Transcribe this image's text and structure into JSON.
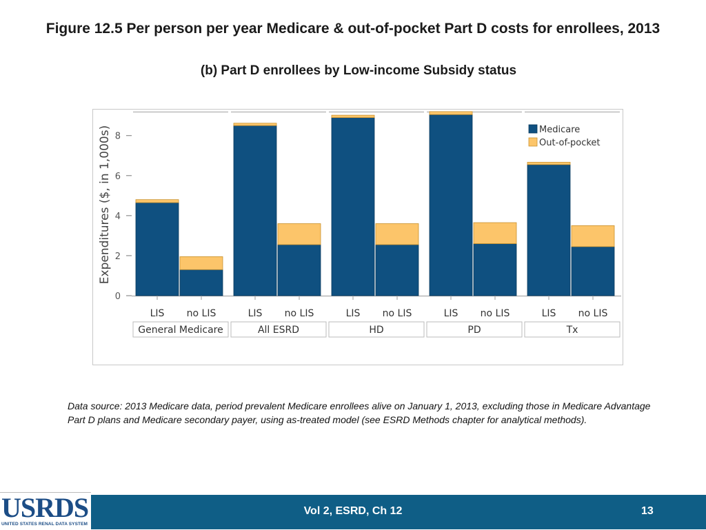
{
  "header": {
    "title": "Figure 12.5 Per person per year Medicare & out-of-pocket Part D costs for enrollees, 2013",
    "subtitle": "(b) Part D enrollees by Low-income Subsidy status"
  },
  "chart_data": {
    "type": "bar",
    "stacked": true,
    "ylabel": "Expenditures ($, in 1,000s)",
    "xlabel": "",
    "ylim": [
      0,
      9.3
    ],
    "yticks": [
      0,
      2,
      4,
      6,
      8
    ],
    "legend": {
      "placement": "top-right",
      "entries": [
        "Medicare",
        "Out-of-pocket"
      ]
    },
    "groups": [
      "General Medicare",
      "All ESRD",
      "HD",
      "PD",
      "Tx"
    ],
    "subcategories": [
      "LIS",
      "no LIS"
    ],
    "series": [
      {
        "name": "Medicare",
        "color": "#0f5080",
        "values": [
          [
            4.65,
            1.3
          ],
          [
            8.5,
            2.55
          ],
          [
            8.9,
            2.55
          ],
          [
            9.05,
            2.6
          ],
          [
            6.55,
            2.45
          ]
        ]
      },
      {
        "name": "Out-of-pocket",
        "color": "#fcc56a",
        "values": [
          [
            0.15,
            0.65
          ],
          [
            0.12,
            1.05
          ],
          [
            0.12,
            1.05
          ],
          [
            0.15,
            1.05
          ],
          [
            0.12,
            1.05
          ]
        ]
      }
    ]
  },
  "source": {
    "text": "Data source: 2013 Medicare data, period prevalent Medicare enrollees alive on January 1, 2013, excluding those in Medicare Advantage Part D plans and Medicare secondary payer, using as-treated model (see ESRD Methods chapter for analytical methods)."
  },
  "footer": {
    "logo_text": "USRDS",
    "logo_subtext": "UNITED STATES RENAL DATA SYSTEM",
    "center_label": "Vol 2, ESRD, Ch 12",
    "page_number": "13",
    "background_color": "#0f5e86"
  }
}
